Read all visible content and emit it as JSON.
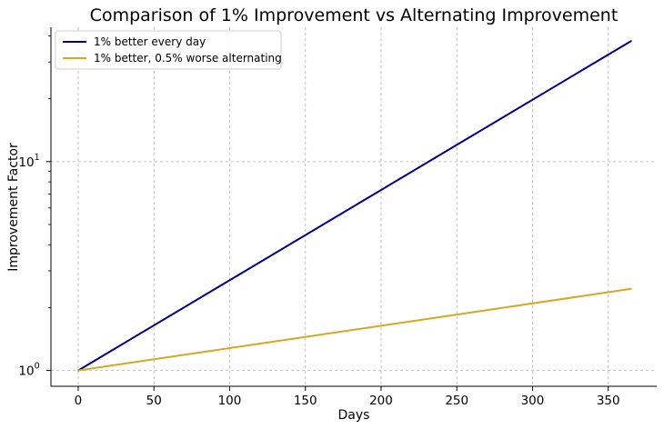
{
  "chart_data": {
    "type": "line",
    "title": "Comparison of 1% Improvement vs Alternating Improvement",
    "xlabel": "Days",
    "ylabel": "Improvement Factor",
    "xlim": [
      -18,
      382
    ],
    "ylim": [
      0.84,
      44
    ],
    "yscale": "log",
    "grid": true,
    "legend_position": "top-left",
    "x_ticks": [
      0,
      50,
      100,
      150,
      200,
      250,
      300,
      350
    ],
    "y_ticks": [
      {
        "value": 1,
        "base": "10",
        "exp": "0"
      },
      {
        "value": 10,
        "base": "10",
        "exp": "1"
      }
    ],
    "series": [
      {
        "name": "1% better every day",
        "color": "#00008b",
        "x": [
          0,
          365
        ],
        "values": [
          1,
          37.78
        ],
        "growth": "exponential"
      },
      {
        "name": "1% better, 0.5% worse alternating",
        "color": "#daa520",
        "x": [
          0,
          365
        ],
        "values": [
          1,
          2.46
        ],
        "growth": "exponential"
      }
    ]
  }
}
